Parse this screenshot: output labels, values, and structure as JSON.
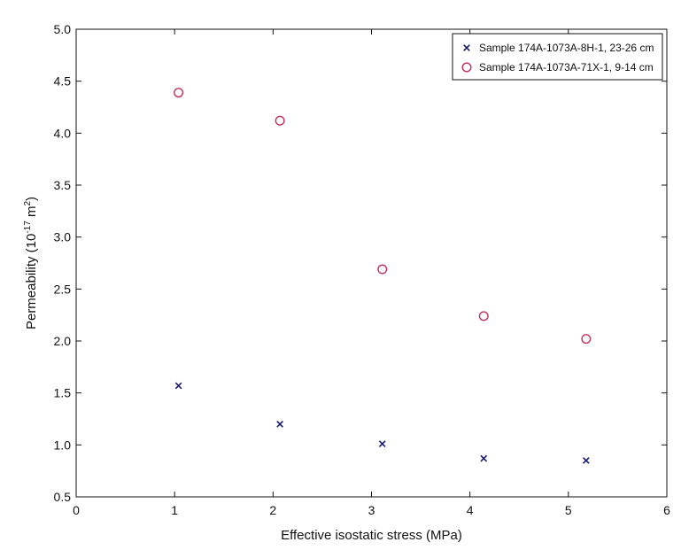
{
  "chart_data": {
    "type": "scatter",
    "xlabel": "Effective isostatic stress (MPa)",
    "ylabel": "Permeability (10",
    "ylabel_exponent": "-17",
    "ylabel_unit": " m",
    "ylabel_unit_exponent": "2",
    "ylabel_close": ")",
    "xlim": [
      0,
      6
    ],
    "ylim": [
      0.5,
      5.0
    ],
    "xticks": [
      "0",
      "1",
      "2",
      "3",
      "4",
      "5",
      "6"
    ],
    "yticks": [
      "0.5",
      "1.0",
      "1.5",
      "2.0",
      "2.5",
      "3.0",
      "3.5",
      "4.0",
      "4.5",
      "5.0"
    ],
    "grid": false,
    "legend_position": "top-right",
    "series": [
      {
        "name": "Sample 174A-1073A-8H-1, 23-26 cm",
        "marker": "x",
        "color": "#1a1a6e",
        "x": [
          1.04,
          2.07,
          3.11,
          4.14,
          5.18
        ],
        "y": [
          1.57,
          1.2,
          1.01,
          0.87,
          0.85
        ]
      },
      {
        "name": "Sample 174A-1073A-71X-1, 9-14 cm",
        "marker": "circle",
        "color": "#c0305a",
        "x": [
          1.04,
          2.07,
          3.11,
          4.14,
          5.18
        ],
        "y": [
          4.39,
          4.12,
          2.69,
          2.24,
          2.02
        ]
      }
    ]
  }
}
